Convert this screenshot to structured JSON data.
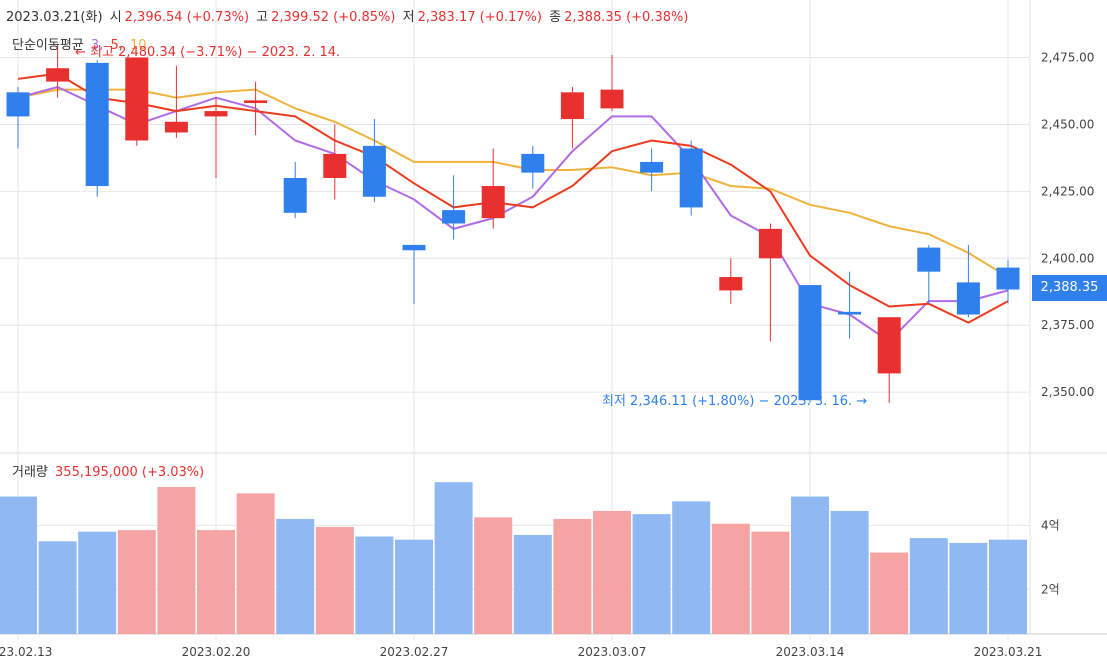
{
  "header": {
    "date": "2023.03.21(화)",
    "open_label": "시",
    "open_value": "2,396.54 (+0.73%)",
    "high_label": "고",
    "high_value": "2,399.52 (+0.85%)",
    "low_label": "저",
    "low_value": "2,383.17 (+0.17%)",
    "close_label": "종",
    "close_value": "2,388.35 (+0.38%)"
  },
  "ma_legend": {
    "label": "단순이동평균",
    "p3": "3",
    "p5": "5",
    "p10": "10"
  },
  "annotations": {
    "max_text": "← 최고 2,480.34 (−3.71%) − 2023. 2. 14.",
    "min_text": "최저 2,346.11 (+1.80%) − 2023. 3. 16. →"
  },
  "current_price_label": "2,388.35",
  "volume_legend": {
    "label": "거래량",
    "value": "355,195,000 (+3.03%)"
  },
  "colors": {
    "up": "#e8312f",
    "down": "#2f80ed",
    "vol_up": "#f5a3a3",
    "vol_down": "#90b9f4",
    "ma3": "#b26be6",
    "ma5": "#ec3b1e",
    "ma10": "#efb33c",
    "grid": "#e6e6e6"
  },
  "chart_data": {
    "type": "candlestick",
    "price_axis": {
      "ticks": [
        2475,
        2450,
        2425,
        2400,
        2375,
        2350
      ],
      "labels": [
        "2,475.00",
        "2,450.00",
        "2,425.00",
        "2,400.00",
        "2,375.00",
        "2,350.00"
      ],
      "range": [
        2334,
        2492
      ]
    },
    "volume_axis": {
      "ticks": [
        4,
        2
      ],
      "labels": [
        "4억",
        "2억"
      ],
      "unit": "억",
      "range": [
        0.6,
        6.2
      ]
    },
    "x_tick_labels": [
      {
        "index": 0,
        "label": "2023.02.13"
      },
      {
        "index": 5,
        "label": "2023.02.20"
      },
      {
        "index": 10,
        "label": "2023.02.27"
      },
      {
        "index": 15,
        "label": "2023.03.07"
      },
      {
        "index": 20,
        "label": "2023.03.14"
      },
      {
        "index": 25,
        "label": "2023.03.21"
      }
    ],
    "candles": [
      {
        "o": 2462,
        "h": 2464,
        "c": 2453,
        "l": 2441
      },
      {
        "o": 2466,
        "h": 2480,
        "c": 2471,
        "l": 2460
      },
      {
        "o": 2473,
        "h": 2474,
        "c": 2427,
        "l": 2423
      },
      {
        "o": 2444,
        "h": 2475,
        "c": 2475,
        "l": 2442
      },
      {
        "o": 2447,
        "h": 2472,
        "c": 2451,
        "l": 2445
      },
      {
        "o": 2453,
        "h": 2460,
        "c": 2455,
        "l": 2430
      },
      {
        "o": 2458,
        "h": 2466,
        "c": 2459,
        "l": 2446
      },
      {
        "o": 2430,
        "h": 2436,
        "c": 2417,
        "l": 2415
      },
      {
        "o": 2430,
        "h": 2450,
        "c": 2439,
        "l": 2422
      },
      {
        "o": 2442,
        "h": 2452,
        "c": 2423,
        "l": 2421
      },
      {
        "o": 2405,
        "h": 2405,
        "c": 2403,
        "l": 2383
      },
      {
        "o": 2418,
        "h": 2431,
        "c": 2413,
        "l": 2407
      },
      {
        "o": 2415,
        "h": 2441,
        "c": 2427,
        "l": 2411
      },
      {
        "o": 2439,
        "h": 2442,
        "c": 2432,
        "l": 2426
      },
      {
        "o": 2452,
        "h": 2464,
        "c": 2462,
        "l": 2441
      },
      {
        "o": 2456,
        "h": 2476,
        "c": 2463,
        "l": 2455
      },
      {
        "o": 2436,
        "h": 2441,
        "c": 2432,
        "l": 2425
      },
      {
        "o": 2441,
        "h": 2444,
        "c": 2419,
        "l": 2416
      },
      {
        "o": 2388,
        "h": 2400,
        "c": 2393,
        "l": 2383
      },
      {
        "o": 2400,
        "h": 2413,
        "c": 2411,
        "l": 2369
      },
      {
        "o": 2390,
        "h": 2390,
        "c": 2347,
        "l": 2346
      },
      {
        "o": 2380,
        "h": 2395,
        "c": 2379,
        "l": 2370
      },
      {
        "o": 2357,
        "h": 2378,
        "c": 2378,
        "l": 2346
      },
      {
        "o": 2404,
        "h": 2405,
        "c": 2395,
        "l": 2383
      },
      {
        "o": 2391,
        "h": 2405,
        "c": 2379,
        "l": 2378
      },
      {
        "o": 2396.54,
        "h": 2399.52,
        "c": 2388.35,
        "l": 2383.17
      }
    ],
    "ma3": [
      2460,
      2464,
      2457,
      2450,
      2455,
      2460,
      2456,
      2444,
      2439,
      2429,
      2422,
      2411,
      2415,
      2423,
      2440,
      2453,
      2453,
      2437,
      2416,
      2408,
      2383,
      2379,
      2369,
      2384,
      2384,
      2388
    ],
    "ma5": [
      2467,
      2469,
      2460,
      2458,
      2455,
      2457,
      2455,
      2453,
      2444,
      2438,
      2428,
      2419,
      2421,
      2419,
      2427,
      2440,
      2444,
      2442,
      2435,
      2425,
      2401,
      2390,
      2382,
      2383,
      2376,
      2384
    ],
    "ma10": [
      2460,
      2463,
      2463,
      2463,
      2460,
      2462,
      2463,
      2456,
      2451,
      2444,
      2436,
      2436,
      2436,
      2433,
      2433,
      2434,
      2431,
      2432,
      2427,
      2426,
      2420,
      2417,
      2412,
      2409,
      2402,
      2393
    ],
    "volume": [
      4.9,
      3.5,
      3.8,
      3.85,
      5.2,
      3.85,
      5.0,
      4.2,
      3.95,
      3.65,
      3.55,
      5.35,
      4.25,
      3.7,
      4.2,
      4.45,
      4.35,
      4.75,
      4.05,
      3.8,
      4.9,
      4.45,
      3.15,
      3.6,
      3.45,
      3.55
    ],
    "volume_up": [
      false,
      false,
      false,
      true,
      true,
      true,
      true,
      false,
      true,
      false,
      false,
      false,
      true,
      false,
      true,
      true,
      false,
      false,
      true,
      true,
      false,
      false,
      true,
      false,
      false,
      false
    ]
  }
}
